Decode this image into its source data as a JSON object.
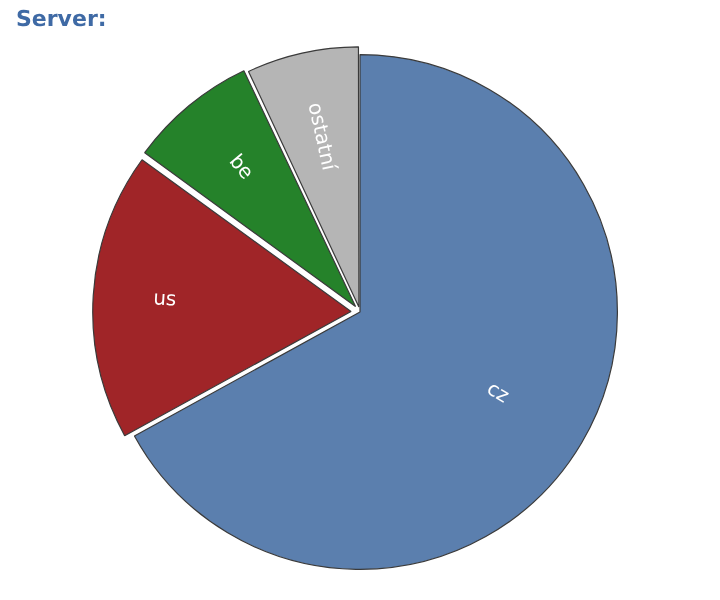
{
  "chart_data": {
    "type": "pie",
    "title": "Server:",
    "categories": [
      "cz",
      "us",
      "be",
      "ostatní"
    ],
    "values": [
      67,
      18,
      8,
      7
    ],
    "colors": [
      "#5b7fae",
      "#a02528",
      "#25822a",
      "#b5b5b5"
    ],
    "legend": false
  }
}
